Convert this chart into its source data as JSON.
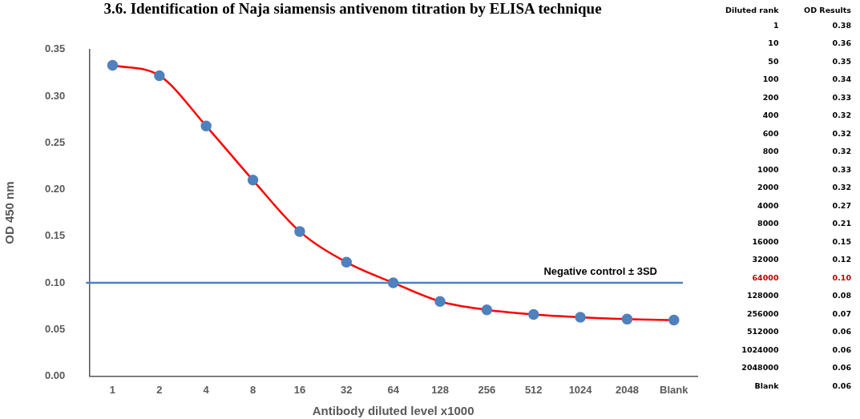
{
  "chart_data": [
    {
      "type": "line",
      "title": "3.6. Identification of Naja siamensis antivenom titration by ELISA technique",
      "xlabel": "Antibody diluted level x1000",
      "ylabel": "OD 450 nm",
      "categories": [
        "1",
        "2",
        "4",
        "8",
        "16",
        "32",
        "64",
        "128",
        "256",
        "512",
        "1024",
        "2048",
        "Blank"
      ],
      "series": [
        {
          "color": "#ff0000",
          "colors": [
            "#4f81bd",
            "#4f81bd",
            "#4f81bd",
            "#4f81bd",
            "#4f81bd",
            "#4f81bd",
            "#4f81bd",
            "#4f81bd",
            "#4f81bd",
            "#4f81bd",
            "#4f81bd",
            "#4f81bd",
            "#4f81bd"
          ],
          "values": [
            0.333,
            0.322,
            0.268,
            0.21,
            0.155,
            0.122,
            0.1,
            0.08,
            0.071,
            0.066,
            0.063,
            0.061,
            0.06
          ]
        }
      ],
      "ylim": [
        0,
        0.35
      ],
      "yticks": [
        {
          "value": 0,
          "label": "0.00"
        },
        {
          "value": 0.05,
          "label": "0.05"
        },
        {
          "value": 0.1,
          "label": "0.10"
        },
        {
          "value": 0.15,
          "label": "0.15"
        },
        {
          "value": 0.2,
          "label": "0.20"
        },
        {
          "value": 0.25,
          "label": "0.25"
        },
        {
          "value": 0.3,
          "label": "0.30"
        },
        {
          "value": 0.35,
          "label": "0.35"
        }
      ],
      "ref_lines": [
        {
          "axis": "y",
          "value": 0.1,
          "label": "Negative control ± 3SD",
          "color": "#4f81bd"
        }
      ],
      "grid": false,
      "legend": false,
      "marker": "circle",
      "line_style": "solid"
    },
    {
      "type": "other",
      "annotations": [
        "Diluted rank",
        "OD Results",
        "1",
        "0.38",
        "10",
        "0.36",
        "50",
        "0.35",
        "100",
        "0.34",
        "200",
        "0.33",
        "400",
        "0.32",
        "600",
        "0.32",
        "800",
        "0.32",
        "1000",
        "0.33",
        "2000",
        "0.32",
        "4000",
        "0.27",
        "8000",
        "0.21",
        "16000",
        "0.15",
        "32000",
        "0.12",
        "64000",
        "0.10",
        "128000",
        "0.08",
        "256000",
        "0.07",
        "512000",
        "0.06",
        "1024000",
        "0.06",
        "2048000",
        "0.06",
        "Blank",
        "0.06"
      ],
      "colors": [
        "#000000",
        "#000000",
        "#000000",
        "#000000",
        "#000000",
        "#000000",
        "#000000",
        "#000000",
        "#000000",
        "#000000",
        "#000000",
        "#000000",
        "#000000",
        "#000000",
        "#000000",
        "#c00000",
        "#000000",
        "#000000",
        "#000000",
        "#000000",
        "#000000",
        "#000000"
      ]
    }
  ]
}
